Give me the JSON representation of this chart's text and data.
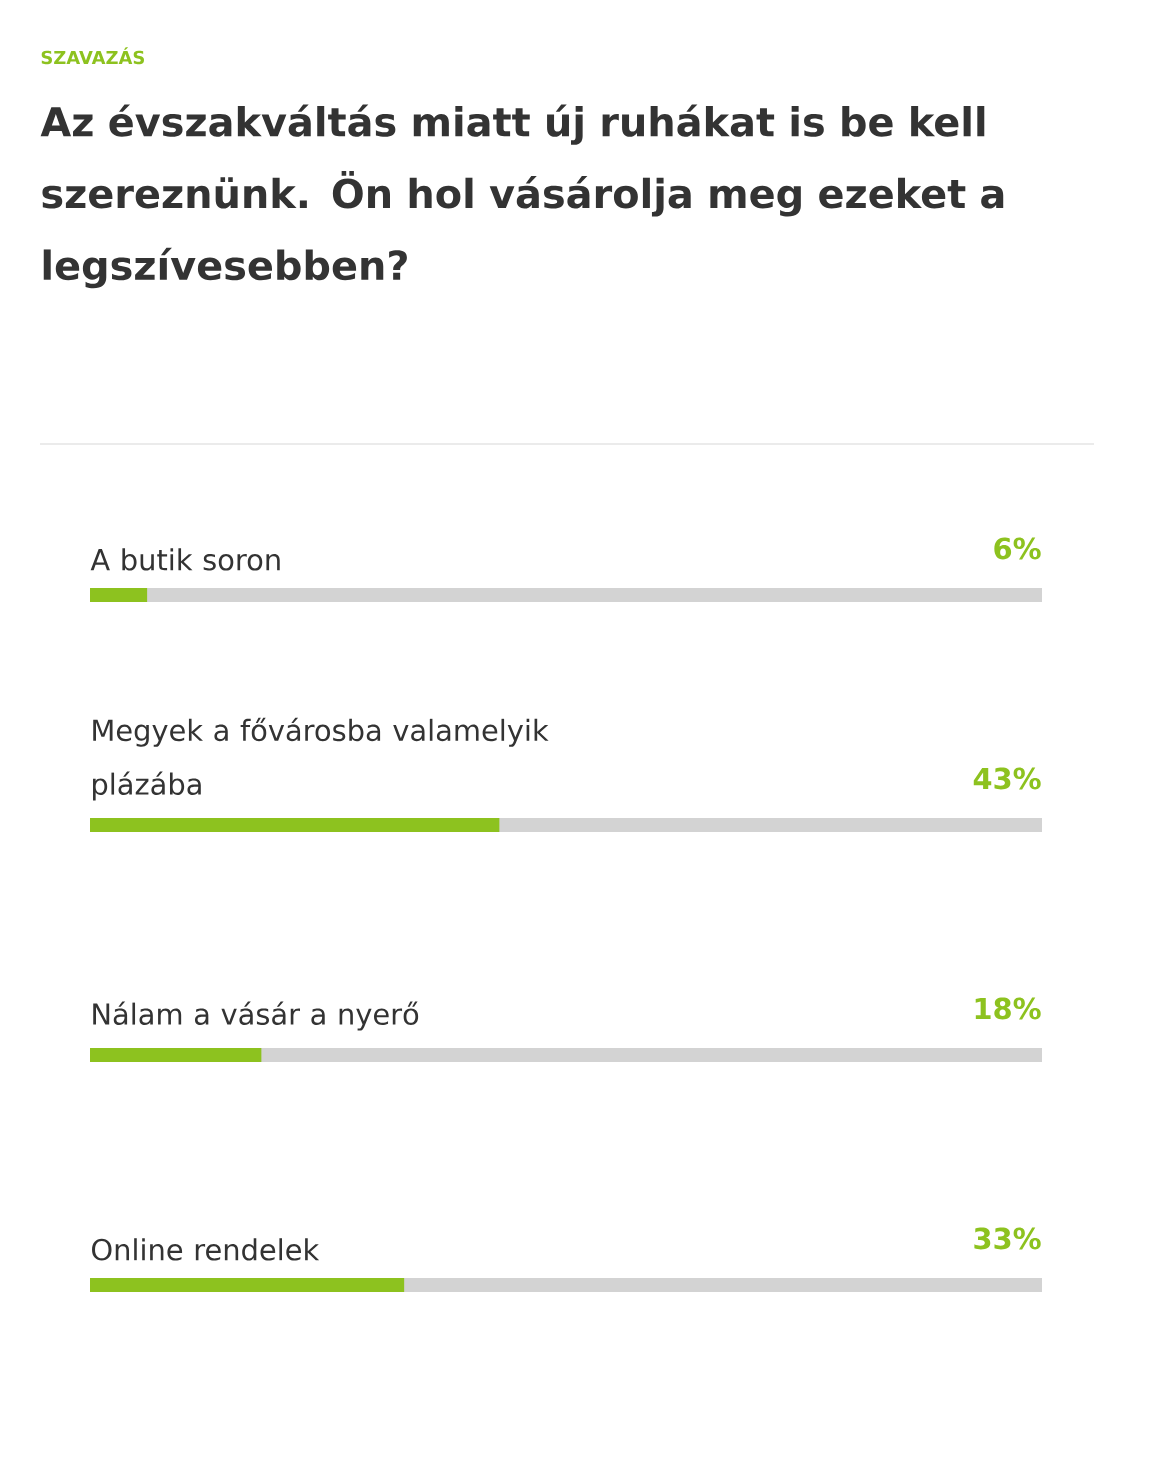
{
  "chart_data": {
    "type": "bar",
    "orientation": "horizontal",
    "subtitle": "SZAVAZÁS",
    "title": "Az évszakváltás miatt új ruhákat is be kell szereznünk. Ön hol vásárolja meg ezeket a legszívesebben?",
    "categories": [
      "A butik soron",
      "Megyek a fővárosba valamelyik plázába",
      "Nálam a vásár a nyerő",
      "Online rendelek"
    ],
    "values": [
      6,
      43,
      18,
      33
    ],
    "value_labels": [
      "6%",
      "43%",
      "18%",
      "33%"
    ],
    "color": "#8dc21f",
    "xlim": [
      0,
      100
    ]
  }
}
